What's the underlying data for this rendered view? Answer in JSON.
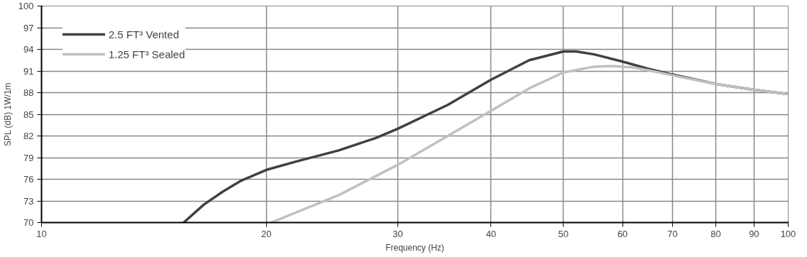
{
  "chart_data": {
    "type": "line",
    "xlabel": "Frequency (Hz)",
    "ylabel": "SPL (dB) 1W/1m",
    "log": "x",
    "grid": true,
    "legend": "top left",
    "line_style": "solid",
    "xlim": [
      10,
      100
    ],
    "xticks": [
      10,
      20,
      30,
      40,
      50,
      60,
      70,
      80,
      90,
      100
    ],
    "ylim": [
      70,
      100
    ],
    "yticks": [
      70,
      73,
      76,
      79,
      82,
      85,
      88,
      91,
      94,
      97,
      100
    ],
    "series": [
      {
        "name": "2.5 FT³ Vented",
        "color": "#404040",
        "x": [
          15.5,
          16.5,
          17.5,
          18.5,
          20,
          22,
          25,
          28,
          30,
          35,
          40,
          45,
          50,
          52,
          55,
          60,
          65,
          70,
          80,
          90,
          100
        ],
        "values": [
          70,
          72.5,
          74.3,
          75.8,
          77.3,
          78.5,
          80,
          81.7,
          83,
          86.3,
          89.8,
          92.5,
          93.7,
          93.7,
          93.3,
          92.3,
          91.3,
          90.5,
          89.2,
          88.4,
          87.8
        ]
      },
      {
        "name": "1.25 FT³ Sealed",
        "color": "#c0c0c0",
        "x": [
          20.3,
          25,
          30,
          35,
          40,
          45,
          50,
          55,
          58,
          62,
          65,
          70,
          80,
          90,
          100
        ],
        "values": [
          70,
          73.8,
          78,
          82,
          85.5,
          88.6,
          90.8,
          91.6,
          91.7,
          91.5,
          91.1,
          90.4,
          89.2,
          88.4,
          87.8
        ]
      }
    ]
  }
}
